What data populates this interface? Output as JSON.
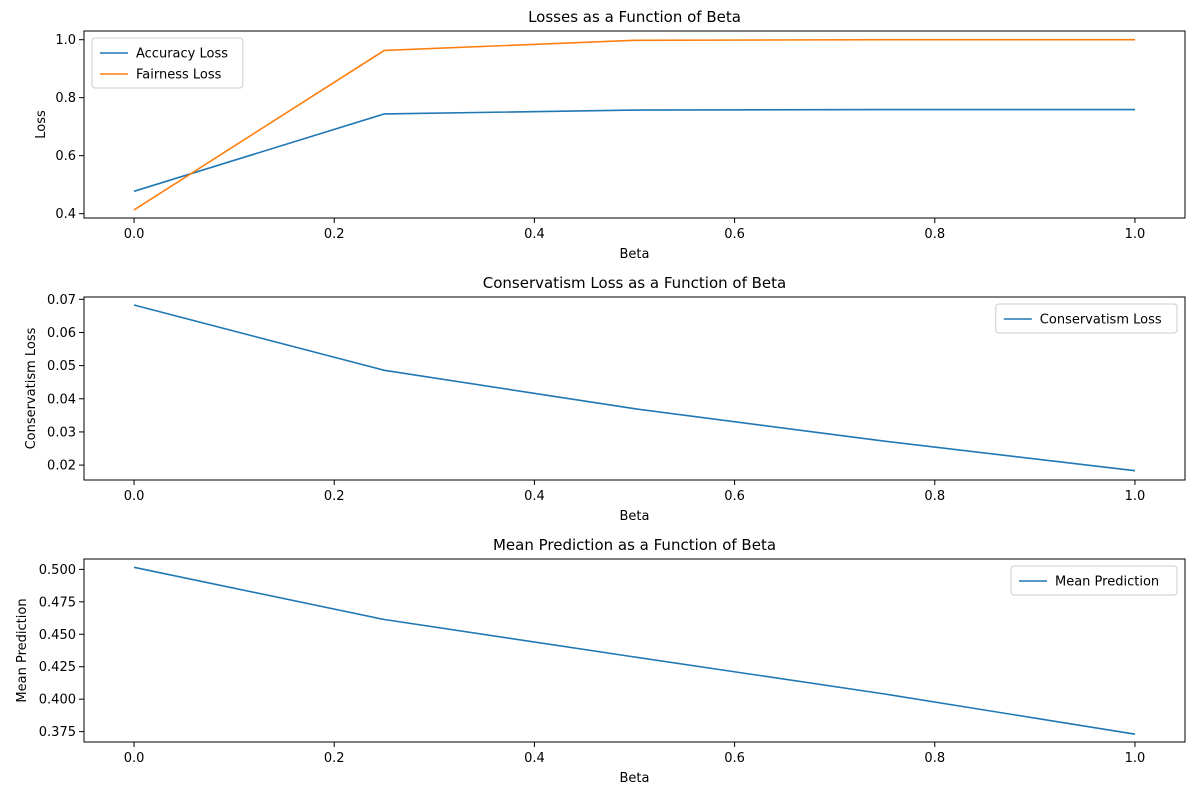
{
  "chart_data": [
    {
      "type": "line",
      "title": "Losses as a Function of Beta",
      "xlabel": "Beta",
      "ylabel": "Loss",
      "xlim": [
        -0.05,
        1.05
      ],
      "ylim": [
        0.385,
        1.03
      ],
      "xticks": [
        "0.0",
        "0.2",
        "0.4",
        "0.6",
        "0.8",
        "1.0"
      ],
      "yticks": [
        "0.4",
        "0.6",
        "0.8",
        "1.0"
      ],
      "grid": false,
      "legend": "upper-left",
      "x": [
        0.0,
        0.25,
        0.5,
        0.75,
        1.0
      ],
      "series": [
        {
          "name": "Accuracy Loss",
          "color": "#1f77b4",
          "values": [
            0.477,
            0.744,
            0.757,
            0.759,
            0.759
          ]
        },
        {
          "name": "Fairness Loss",
          "color": "#ff7f0e",
          "values": [
            0.413,
            0.963,
            0.998,
            1.0,
            1.0
          ]
        }
      ]
    },
    {
      "type": "line",
      "title": "Conservatism Loss as a Function of Beta",
      "xlabel": "Beta",
      "ylabel": "Conservatism Loss",
      "xlim": [
        -0.05,
        1.05
      ],
      "ylim": [
        0.0155,
        0.0707
      ],
      "xticks": [
        "0.0",
        "0.2",
        "0.4",
        "0.6",
        "0.8",
        "1.0"
      ],
      "yticks": [
        "0.02",
        "0.03",
        "0.04",
        "0.05",
        "0.06",
        "0.07"
      ],
      "grid": false,
      "legend": "upper-right",
      "x": [
        0.0,
        0.25,
        0.5,
        0.75,
        1.0
      ],
      "series": [
        {
          "name": "Conservatism Loss",
          "color": "#1f77b4",
          "values": [
            0.0683,
            0.0486,
            0.037,
            0.0272,
            0.0183
          ]
        }
      ]
    },
    {
      "type": "line",
      "title": "Mean Prediction as a Function of Beta",
      "xlabel": "Beta",
      "ylabel": "Mean Prediction",
      "xlim": [
        -0.05,
        1.05
      ],
      "ylim": [
        0.367,
        0.508
      ],
      "xticks": [
        "0.0",
        "0.2",
        "0.4",
        "0.6",
        "0.8",
        "1.0"
      ],
      "yticks": [
        "0.375",
        "0.400",
        "0.425",
        "0.450",
        "0.475",
        "0.500"
      ],
      "grid": false,
      "legend": "upper-right",
      "x": [
        0.0,
        0.25,
        0.5,
        0.75,
        1.0
      ],
      "series": [
        {
          "name": "Mean Prediction",
          "color": "#1f77b4",
          "values": [
            0.5016,
            0.4614,
            0.4325,
            0.404,
            0.373
          ]
        }
      ]
    }
  ]
}
